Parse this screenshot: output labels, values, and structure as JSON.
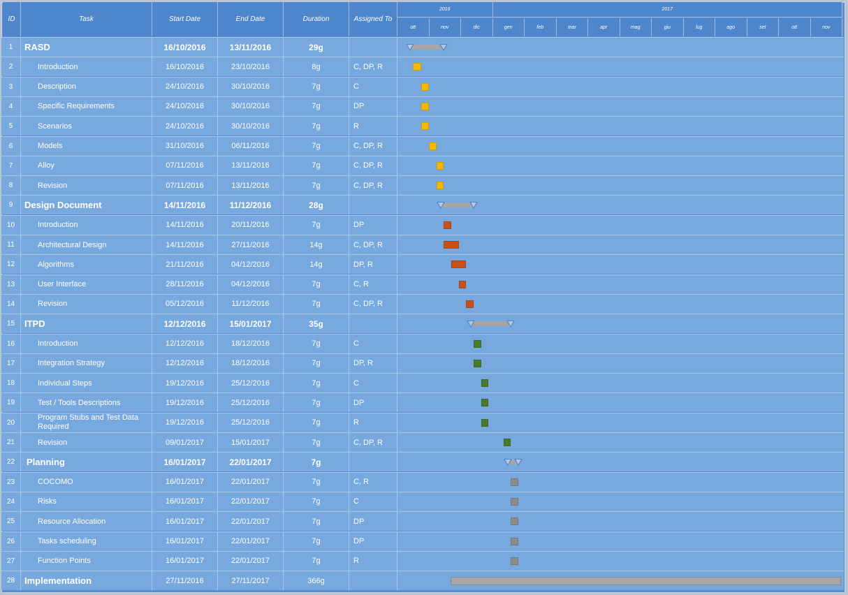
{
  "header": {
    "id": "ID",
    "task": "Task",
    "start": "Start Date",
    "end": "End Date",
    "duration": "Duration",
    "assigned": "Assigned To"
  },
  "timeline": {
    "years": [
      "2016",
      "2017"
    ],
    "months": [
      "ott",
      "nov",
      "dic",
      "gen",
      "feb",
      "mar",
      "apr",
      "mag",
      "giu",
      "lug",
      "ago",
      "set",
      "ott",
      "nov"
    ]
  },
  "colors": {
    "rasd": "#f5b800",
    "design": "#c8501a",
    "itpd": "#4a7a2c",
    "planning": "#8c8c8c",
    "summary": "#a6a6a6"
  },
  "tasks": [
    {
      "id": "1",
      "name": "RASD",
      "start": "16/10/2016",
      "end": "13/11/2016",
      "duration": "29g",
      "assigned": "",
      "summary": true
    },
    {
      "id": "2",
      "name": "Introduction",
      "start": "16/10/2016",
      "end": "23/10/2016",
      "duration": "8g",
      "assigned": "C, DP, R",
      "group": "rasd"
    },
    {
      "id": "3",
      "name": "Description",
      "start": "24/10/2016",
      "end": "30/10/2016",
      "duration": "7g",
      "assigned": "C",
      "group": "rasd"
    },
    {
      "id": "4",
      "name": "Specific Requirements",
      "start": "24/10/2016",
      "end": "30/10/2016",
      "duration": "7g",
      "assigned": "DP",
      "group": "rasd"
    },
    {
      "id": "5",
      "name": "Scenarios",
      "start": "24/10/2016",
      "end": "30/10/2016",
      "duration": "7g",
      "assigned": "R",
      "group": "rasd"
    },
    {
      "id": "6",
      "name": "Models",
      "start": "31/10/2016",
      "end": "06/11/2016",
      "duration": "7g",
      "assigned": "C, DP, R",
      "group": "rasd"
    },
    {
      "id": "7",
      "name": "Alloy",
      "start": "07/11/2016",
      "end": "13/11/2016",
      "duration": "7g",
      "assigned": "C, DP, R",
      "group": "rasd"
    },
    {
      "id": "8",
      "name": "Revision",
      "start": "07/11/2016",
      "end": "13/11/2016",
      "duration": "7g",
      "assigned": "C, DP, R",
      "group": "rasd"
    },
    {
      "id": "9",
      "name": "Design Document",
      "start": "14/11/2016",
      "end": "11/12/2016",
      "duration": "28g",
      "assigned": "",
      "summary": true
    },
    {
      "id": "10",
      "name": "Introduction",
      "start": "14/11/2016",
      "end": "20/11/2016",
      "duration": "7g",
      "assigned": "DP",
      "group": "design"
    },
    {
      "id": "11",
      "name": "Architectural Design",
      "start": "14/11/2016",
      "end": "27/11/2016",
      "duration": "14g",
      "assigned": "C, DP, R",
      "group": "design"
    },
    {
      "id": "12",
      "name": "Algorithms",
      "start": "21/11/2016",
      "end": "04/12/2016",
      "duration": "14g",
      "assigned": "DP, R",
      "group": "design"
    },
    {
      "id": "13",
      "name": "User Interface",
      "start": "28/11/2016",
      "end": "04/12/2016",
      "duration": "7g",
      "assigned": "C, R",
      "group": "design"
    },
    {
      "id": "14",
      "name": "Revision",
      "start": "05/12/2016",
      "end": "11/12/2016",
      "duration": "7g",
      "assigned": "C, DP, R",
      "group": "design"
    },
    {
      "id": "15",
      "name": "ITPD",
      "start": "12/12/2016",
      "end": "15/01/2017",
      "duration": "35g",
      "assigned": "",
      "summary": true
    },
    {
      "id": "16",
      "name": "Introduction",
      "start": "12/12/2016",
      "end": "18/12/2016",
      "duration": "7g",
      "assigned": "C",
      "group": "itpd"
    },
    {
      "id": "17",
      "name": "Integration Strategy",
      "start": "12/12/2016",
      "end": "18/12/2016",
      "duration": "7g",
      "assigned": "DP, R",
      "group": "itpd"
    },
    {
      "id": "18",
      "name": "Individual Steps",
      "start": "19/12/2016",
      "end": "25/12/2016",
      "duration": "7g",
      "assigned": "C",
      "group": "itpd"
    },
    {
      "id": "19",
      "name": "Test / Tools Descriptions",
      "start": "19/12/2016",
      "end": "25/12/2016",
      "duration": "7g",
      "assigned": "DP",
      "group": "itpd"
    },
    {
      "id": "20",
      "name": "Program Stubs and Test Data Required",
      "start": "19/12/2016",
      "end": "25/12/2016",
      "duration": "7g",
      "assigned": "R",
      "group": "itpd",
      "wrap": true
    },
    {
      "id": "21",
      "name": "Revision",
      "start": "09/01/2017",
      "end": "15/01/2017",
      "duration": "7g",
      "assigned": "C, DP, R",
      "group": "itpd"
    },
    {
      "id": "22",
      "name": "Planning",
      "start": "16/01/2017",
      "end": "22/01/2017",
      "duration": "7g",
      "assigned": "",
      "summary": true
    },
    {
      "id": "23",
      "name": "COCOMO",
      "start": "16/01/2017",
      "end": "22/01/2017",
      "duration": "7g",
      "assigned": "C, R",
      "group": "planning"
    },
    {
      "id": "24",
      "name": "Risks",
      "start": "16/01/2017",
      "end": "22/01/2017",
      "duration": "7g",
      "assigned": "C",
      "group": "planning"
    },
    {
      "id": "25",
      "name": "Resource Allocation",
      "start": "16/01/2017",
      "end": "22/01/2017",
      "duration": "7g",
      "assigned": "DP",
      "group": "planning"
    },
    {
      "id": "26",
      "name": "Tasks scheduling",
      "start": "16/01/2017",
      "end": "22/01/2017",
      "duration": "7g",
      "assigned": "DP",
      "group": "planning"
    },
    {
      "id": "27",
      "name": "Function Points",
      "start": "16/01/2017",
      "end": "22/01/2017",
      "duration": "7g",
      "assigned": "R",
      "group": "planning"
    },
    {
      "id": "28",
      "name": "Implementation",
      "start": "27/11/2016",
      "end": "27/11/2017",
      "duration": "366g",
      "assigned": "",
      "summary": true,
      "plainDates": true
    }
  ]
}
